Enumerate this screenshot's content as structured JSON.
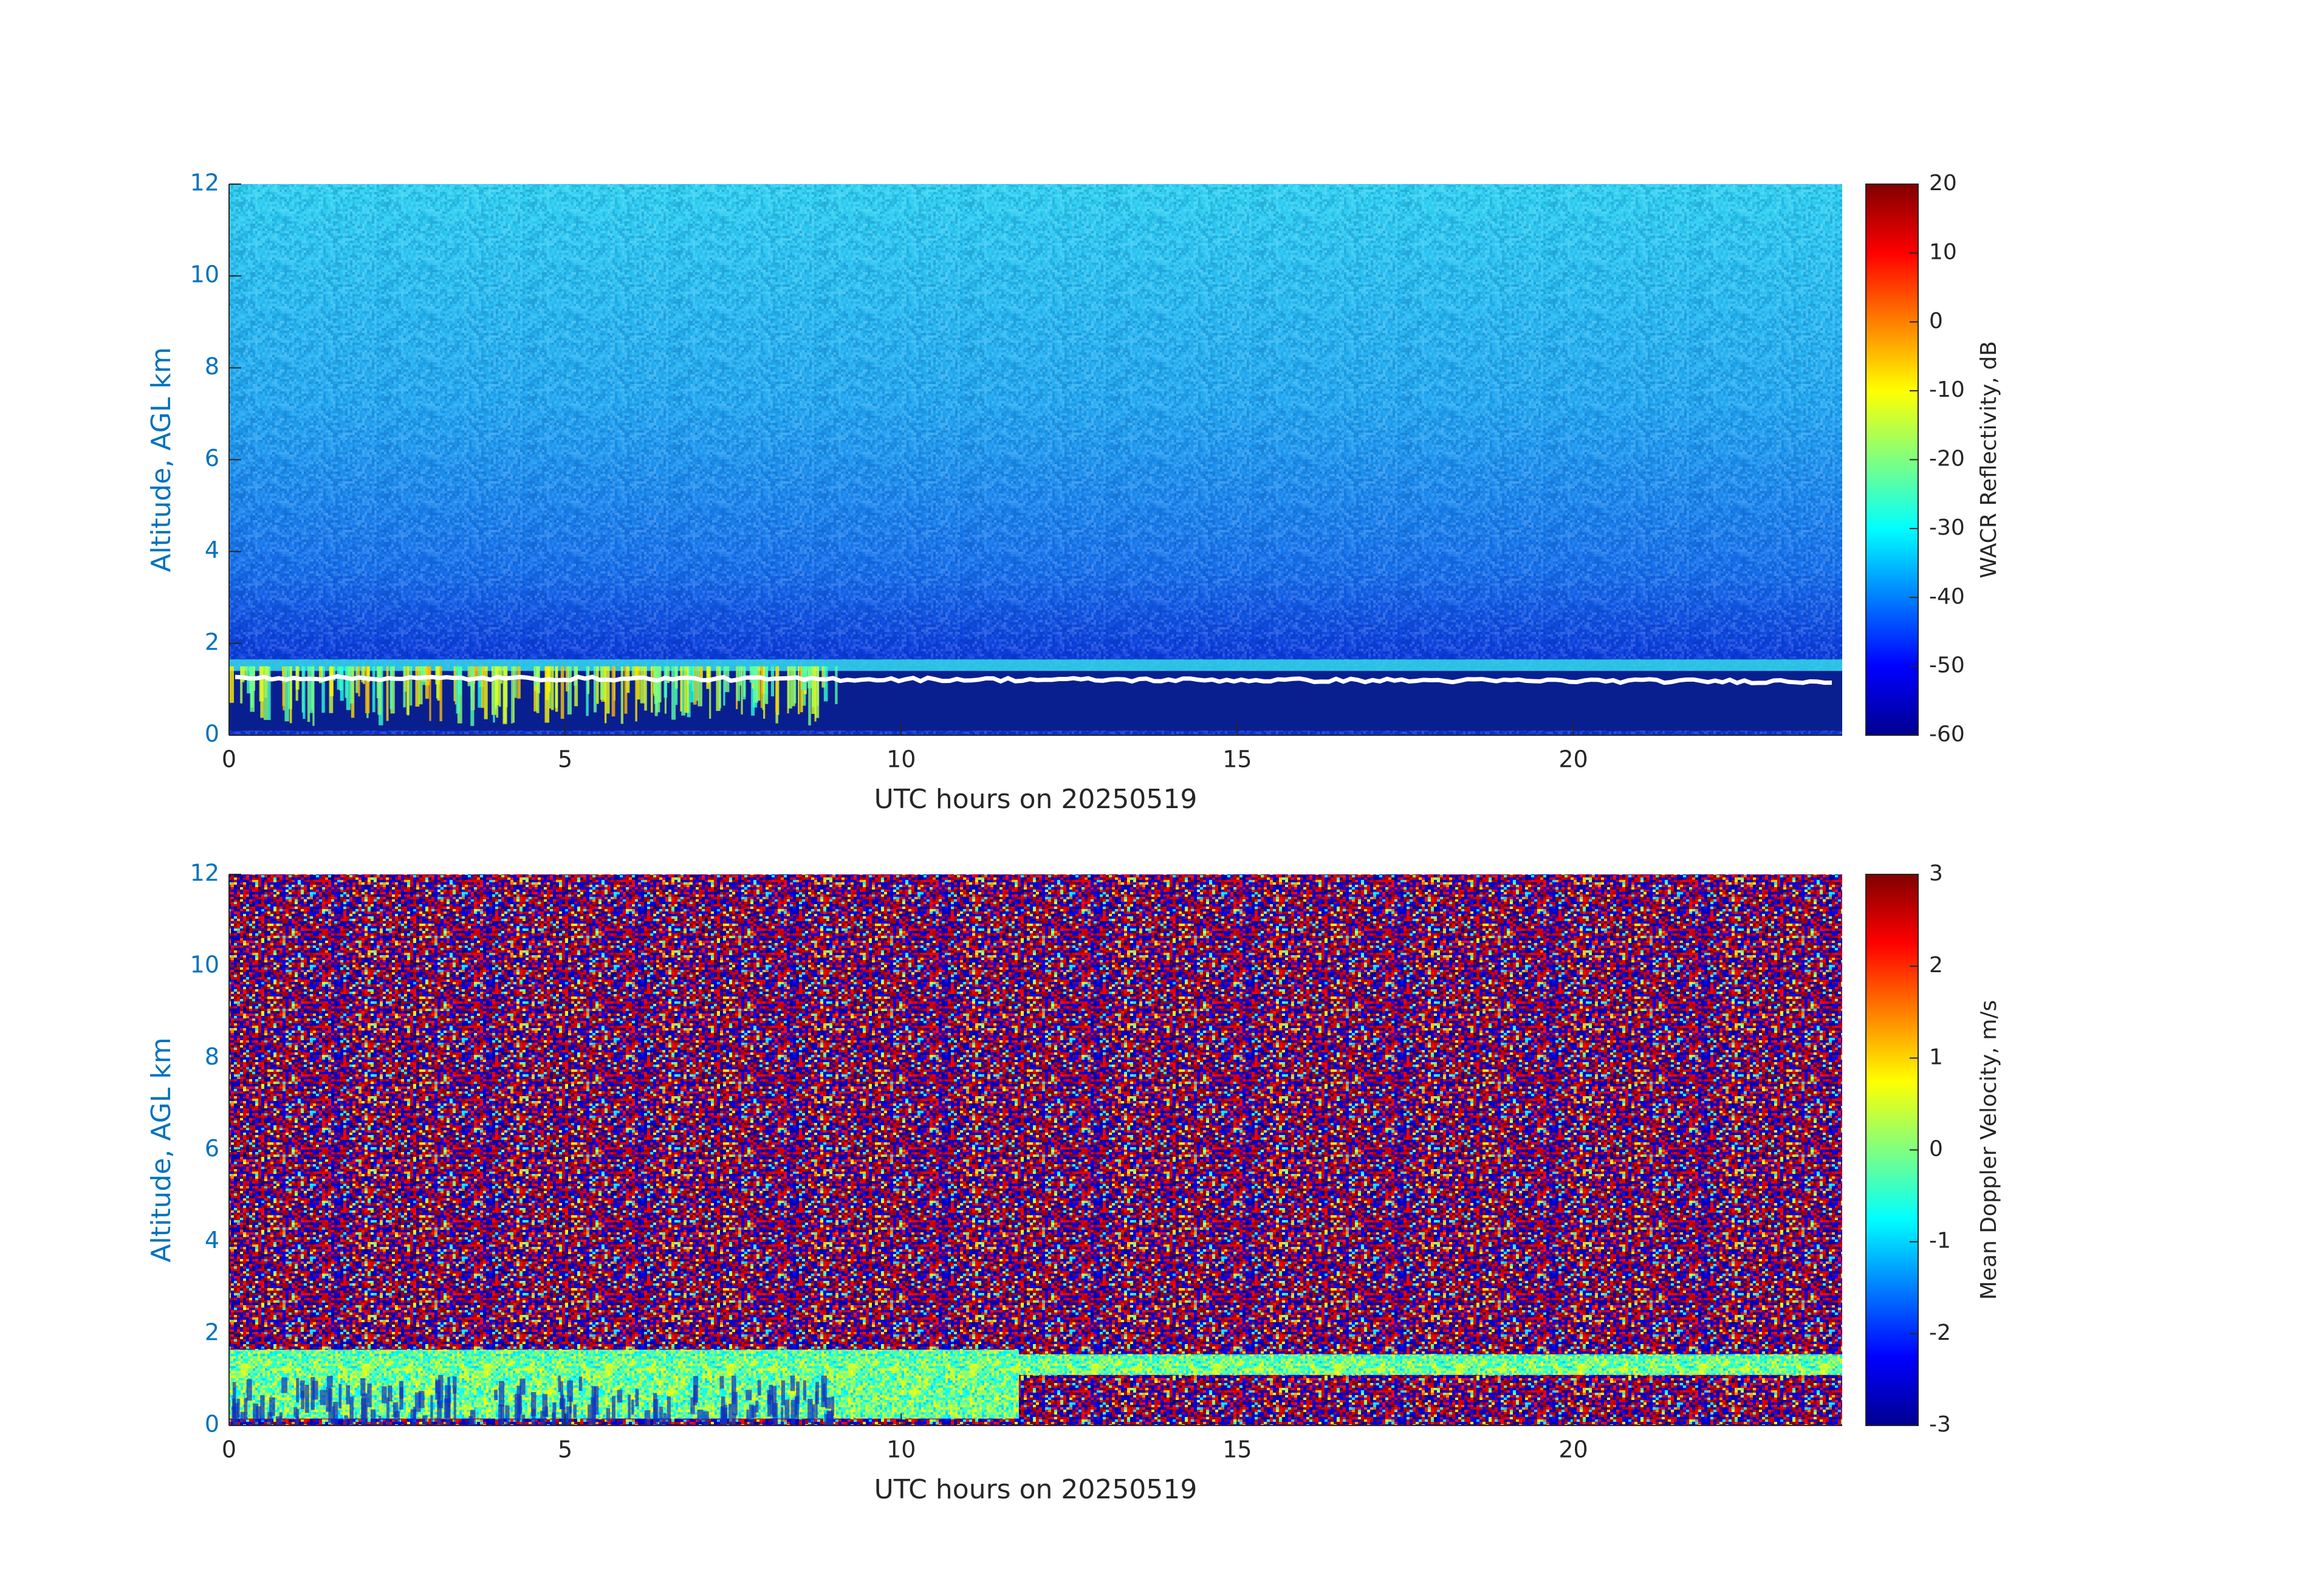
{
  "chart_data": [
    {
      "type": "heatmap",
      "xlabel": "UTC hours on 20250519",
      "ylabel": "Altitude, AGL km",
      "xlim": [
        0,
        24
      ],
      "xticks": [
        0,
        5,
        10,
        15,
        20
      ],
      "ylim": [
        0,
        12
      ],
      "yticks": [
        0,
        2,
        4,
        6,
        8,
        10,
        12
      ],
      "colorbar": {
        "label": "WACR Reflectivity, dB",
        "colormap": "jet",
        "lim": [
          -60,
          20
        ],
        "ticks": [
          -60,
          -50,
          -40,
          -30,
          -20,
          -10,
          0,
          10,
          20
        ]
      }
    },
    {
      "type": "heatmap",
      "xlabel": "UTC hours on 20250519",
      "ylabel": "Altitude, AGL km",
      "xlim": [
        0,
        24
      ],
      "xticks": [
        0,
        5,
        10,
        15,
        20
      ],
      "ylim": [
        0,
        12
      ],
      "yticks": [
        0,
        2,
        4,
        6,
        8,
        10,
        12
      ],
      "colorbar": {
        "label": "Mean Doppler Velocity, m/s",
        "colormap": "jet",
        "lim": [
          -3,
          3
        ],
        "ticks": [
          -3,
          -2,
          -1,
          0,
          1,
          2,
          3
        ]
      }
    }
  ]
}
